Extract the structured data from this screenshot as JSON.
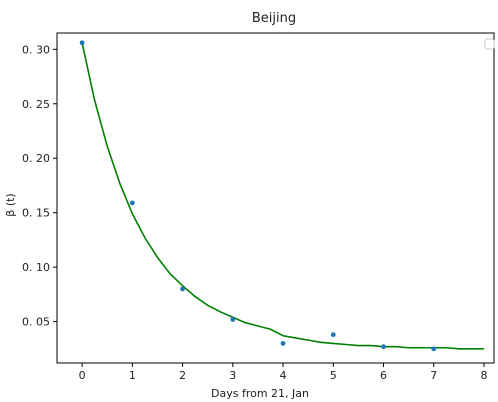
{
  "chart_data": {
    "type": "scatter",
    "title": "Beijing",
    "xlabel": "Days from 21, Jan",
    "ylabel": "β (t)",
    "xlim": [
      -0.5,
      8.2
    ],
    "ylim": [
      0.012,
      0.315
    ],
    "x_ticks": [
      0,
      1,
      2,
      3,
      4,
      5,
      6,
      7,
      8
    ],
    "y_ticks": [
      0.05,
      0.1,
      0.15,
      0.2,
      0.25,
      0.3
    ],
    "y_tick_labels": [
      "0. 05",
      "0. 10",
      "0. 15",
      "0. 20",
      "0. 25",
      "0. 30"
    ],
    "grid": false,
    "legend": "top-right (empty)",
    "series": [
      {
        "kind": "points",
        "color": "#1f77b4",
        "x": [
          0,
          1,
          2,
          3,
          4,
          5,
          6,
          7
        ],
        "y": [
          0.306,
          0.159,
          0.08,
          0.052,
          0.03,
          0.038,
          0.027,
          0.025
        ]
      },
      {
        "kind": "line",
        "color": "#008000",
        "x": [
          0,
          0.25,
          0.5,
          0.75,
          1,
          1.25,
          1.5,
          1.75,
          2,
          2.25,
          2.5,
          2.75,
          3,
          3.25,
          3.5,
          3.75,
          4,
          4.25,
          4.5,
          4.75,
          5,
          5.25,
          5.5,
          5.75,
          6,
          6.25,
          6.5,
          6.75,
          7,
          7.25,
          7.5,
          7.75,
          8
        ],
        "y": [
          0.306,
          0.253,
          0.211,
          0.177,
          0.149,
          0.127,
          0.109,
          0.094,
          0.083,
          0.073,
          0.065,
          0.059,
          0.054,
          0.049,
          0.046,
          0.043,
          0.037,
          0.035,
          0.033,
          0.031,
          0.03,
          0.029,
          0.028,
          0.028,
          0.027,
          0.027,
          0.026,
          0.026,
          0.026,
          0.026,
          0.025,
          0.025,
          0.025
        ]
      }
    ]
  }
}
